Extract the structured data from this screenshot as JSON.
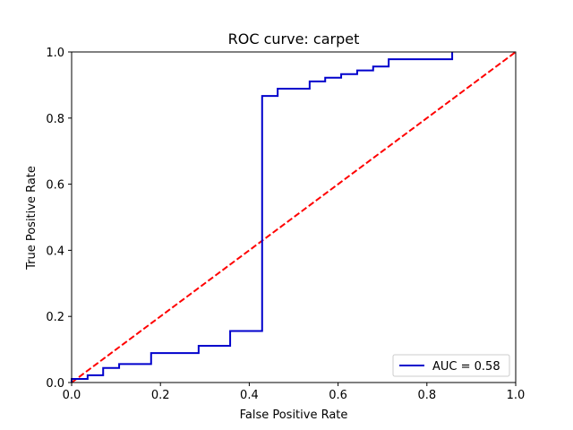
{
  "chart_data": {
    "type": "line",
    "title": "ROC curve: carpet",
    "xlabel": "False Positive Rate",
    "ylabel": "True Positive Rate",
    "xlim": [
      0.0,
      1.0
    ],
    "ylim": [
      0.0,
      1.0
    ],
    "x_ticks": [
      "0.0",
      "0.2",
      "0.4",
      "0.6",
      "0.8",
      "1.0"
    ],
    "y_ticks": [
      "0.0",
      "0.2",
      "0.4",
      "0.6",
      "0.8",
      "1.0"
    ],
    "grid": false,
    "legend_position": "lower-right",
    "series": [
      {
        "name": "AUC = 0.58",
        "color": "#0000cc",
        "style": "solid",
        "step": true,
        "x": [
          0.0,
          0.0,
          0.036,
          0.036,
          0.071,
          0.071,
          0.107,
          0.107,
          0.179,
          0.179,
          0.286,
          0.286,
          0.357,
          0.357,
          0.429,
          0.429,
          0.464,
          0.464,
          0.536,
          0.536,
          0.571,
          0.571,
          0.607,
          0.607,
          0.643,
          0.643,
          0.679,
          0.679,
          0.714,
          0.714,
          0.857,
          0.857
        ],
        "y": [
          0.0,
          0.011,
          0.011,
          0.022,
          0.022,
          0.044,
          0.044,
          0.056,
          0.056,
          0.089,
          0.089,
          0.111,
          0.111,
          0.156,
          0.156,
          0.867,
          0.867,
          0.889,
          0.889,
          0.911,
          0.911,
          0.922,
          0.922,
          0.933,
          0.933,
          0.944,
          0.944,
          0.956,
          0.956,
          0.978,
          0.978,
          1.0
        ]
      },
      {
        "name": "",
        "color": "#ff0000",
        "style": "dashed",
        "step": false,
        "x": [
          0.0,
          1.0
        ],
        "y": [
          0.0,
          1.0
        ]
      }
    ]
  }
}
